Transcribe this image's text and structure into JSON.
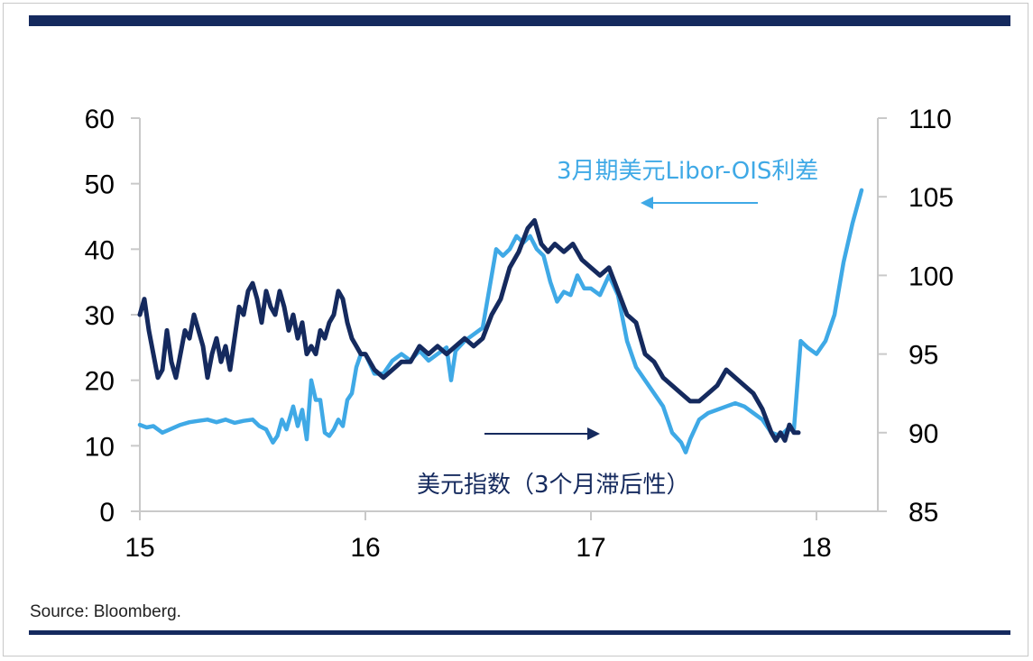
{
  "chart_data": {
    "type": "line",
    "x_ticks": [
      "15",
      "16",
      "17",
      "18"
    ],
    "y_left": {
      "ticks": [
        "60",
        "50",
        "40",
        "30",
        "20",
        "10",
        "0"
      ],
      "range": [
        0,
        60
      ]
    },
    "y_right": {
      "ticks": [
        "110",
        "105",
        "100",
        "95",
        "90",
        "85"
      ],
      "range": [
        85,
        110
      ]
    },
    "x_range": [
      2015.0,
      2018.3
    ],
    "series": [
      {
        "name": "3月期美元Libor-OIS利差",
        "axis": "left",
        "color": "#3fa9e6",
        "points": [
          [
            2015.0,
            13.2
          ],
          [
            2015.03,
            12.8
          ],
          [
            2015.06,
            13.0
          ],
          [
            2015.1,
            12.0
          ],
          [
            2015.14,
            12.6
          ],
          [
            2015.18,
            13.2
          ],
          [
            2015.22,
            13.6
          ],
          [
            2015.26,
            13.8
          ],
          [
            2015.3,
            14.0
          ],
          [
            2015.34,
            13.6
          ],
          [
            2015.38,
            14.0
          ],
          [
            2015.42,
            13.5
          ],
          [
            2015.46,
            13.8
          ],
          [
            2015.5,
            14.0
          ],
          [
            2015.53,
            13.0
          ],
          [
            2015.56,
            12.5
          ],
          [
            2015.59,
            10.5
          ],
          [
            2015.61,
            11.5
          ],
          [
            2015.63,
            14.0
          ],
          [
            2015.65,
            12.5
          ],
          [
            2015.68,
            16.0
          ],
          [
            2015.7,
            13.0
          ],
          [
            2015.72,
            15.5
          ],
          [
            2015.74,
            11.0
          ],
          [
            2015.76,
            20.0
          ],
          [
            2015.78,
            17.0
          ],
          [
            2015.8,
            17.0
          ],
          [
            2015.82,
            12.0
          ],
          [
            2015.84,
            11.5
          ],
          [
            2015.86,
            12.5
          ],
          [
            2015.88,
            14.0
          ],
          [
            2015.9,
            13.0
          ],
          [
            2015.92,
            17.0
          ],
          [
            2015.94,
            18.0
          ],
          [
            2015.96,
            22.0
          ],
          [
            2015.98,
            24.0
          ],
          [
            2016.0,
            24.0
          ],
          [
            2016.04,
            21.0
          ],
          [
            2016.08,
            21.0
          ],
          [
            2016.12,
            23.0
          ],
          [
            2016.16,
            24.0
          ],
          [
            2016.2,
            23.0
          ],
          [
            2016.24,
            24.5
          ],
          [
            2016.28,
            23.0
          ],
          [
            2016.32,
            24.0
          ],
          [
            2016.36,
            25.0
          ],
          [
            2016.38,
            20.0
          ],
          [
            2016.4,
            24.5
          ],
          [
            2016.44,
            26.0
          ],
          [
            2016.48,
            27.0
          ],
          [
            2016.52,
            28.0
          ],
          [
            2016.55,
            34.0
          ],
          [
            2016.58,
            40.0
          ],
          [
            2016.61,
            39.0
          ],
          [
            2016.64,
            40.0
          ],
          [
            2016.67,
            42.0
          ],
          [
            2016.7,
            41.0
          ],
          [
            2016.73,
            42.0
          ],
          [
            2016.76,
            40.0
          ],
          [
            2016.79,
            39.0
          ],
          [
            2016.82,
            35.0
          ],
          [
            2016.85,
            32.0
          ],
          [
            2016.88,
            33.5
          ],
          [
            2016.91,
            33.0
          ],
          [
            2016.94,
            36.0
          ],
          [
            2016.97,
            34.0
          ],
          [
            2017.0,
            34.0
          ],
          [
            2017.04,
            33.0
          ],
          [
            2017.08,
            36.0
          ],
          [
            2017.12,
            33.0
          ],
          [
            2017.16,
            26.0
          ],
          [
            2017.2,
            22.0
          ],
          [
            2017.24,
            20.0
          ],
          [
            2017.28,
            18.0
          ],
          [
            2017.32,
            16.0
          ],
          [
            2017.36,
            12.0
          ],
          [
            2017.4,
            10.5
          ],
          [
            2017.42,
            9.0
          ],
          [
            2017.44,
            11.0
          ],
          [
            2017.48,
            14.0
          ],
          [
            2017.52,
            15.0
          ],
          [
            2017.56,
            15.5
          ],
          [
            2017.6,
            16.0
          ],
          [
            2017.64,
            16.5
          ],
          [
            2017.68,
            16.0
          ],
          [
            2017.72,
            15.0
          ],
          [
            2017.76,
            14.0
          ],
          [
            2017.8,
            12.0
          ],
          [
            2017.84,
            11.5
          ],
          [
            2017.87,
            12.5
          ],
          [
            2017.9,
            12.5
          ],
          [
            2017.93,
            26.0
          ],
          [
            2017.96,
            25.0
          ],
          [
            2018.0,
            24.0
          ],
          [
            2018.04,
            26.0
          ],
          [
            2018.08,
            30.0
          ],
          [
            2018.12,
            38.0
          ],
          [
            2018.16,
            44.0
          ],
          [
            2018.2,
            49.0
          ]
        ]
      },
      {
        "name": "美元指数（3个月滞后性）",
        "axis": "right",
        "color": "#152a5e",
        "points": [
          [
            2015.0,
            97.5
          ],
          [
            2015.02,
            98.5
          ],
          [
            2015.04,
            96.5
          ],
          [
            2015.06,
            95.0
          ],
          [
            2015.08,
            93.5
          ],
          [
            2015.1,
            94.0
          ],
          [
            2015.12,
            96.5
          ],
          [
            2015.14,
            94.5
          ],
          [
            2015.16,
            93.5
          ],
          [
            2015.18,
            95.0
          ],
          [
            2015.2,
            96.5
          ],
          [
            2015.22,
            96.0
          ],
          [
            2015.24,
            97.5
          ],
          [
            2015.26,
            96.5
          ],
          [
            2015.28,
            95.5
          ],
          [
            2015.3,
            93.5
          ],
          [
            2015.32,
            95.0
          ],
          [
            2015.34,
            96.0
          ],
          [
            2015.36,
            94.5
          ],
          [
            2015.38,
            95.5
          ],
          [
            2015.4,
            94.0
          ],
          [
            2015.42,
            96.0
          ],
          [
            2015.44,
            98.0
          ],
          [
            2015.46,
            97.5
          ],
          [
            2015.48,
            99.0
          ],
          [
            2015.5,
            99.5
          ],
          [
            2015.52,
            98.5
          ],
          [
            2015.54,
            97.0
          ],
          [
            2015.56,
            99.0
          ],
          [
            2015.58,
            98.0
          ],
          [
            2015.6,
            97.5
          ],
          [
            2015.62,
            99.0
          ],
          [
            2015.64,
            98.0
          ],
          [
            2015.66,
            96.5
          ],
          [
            2015.68,
            97.5
          ],
          [
            2015.7,
            96.0
          ],
          [
            2015.72,
            97.0
          ],
          [
            2015.74,
            95.0
          ],
          [
            2015.76,
            95.5
          ],
          [
            2015.78,
            95.0
          ],
          [
            2015.8,
            96.5
          ],
          [
            2015.82,
            96.0
          ],
          [
            2015.84,
            97.0
          ],
          [
            2015.86,
            97.5
          ],
          [
            2015.88,
            99.0
          ],
          [
            2015.9,
            98.5
          ],
          [
            2015.92,
            97.0
          ],
          [
            2015.94,
            96.0
          ],
          [
            2015.96,
            95.5
          ],
          [
            2015.98,
            95.0
          ],
          [
            2016.0,
            95.0
          ],
          [
            2016.04,
            94.0
          ],
          [
            2016.08,
            93.5
          ],
          [
            2016.12,
            94.0
          ],
          [
            2016.16,
            94.5
          ],
          [
            2016.2,
            94.5
          ],
          [
            2016.24,
            95.5
          ],
          [
            2016.28,
            95.0
          ],
          [
            2016.32,
            95.5
          ],
          [
            2016.36,
            95.0
          ],
          [
            2016.4,
            95.5
          ],
          [
            2016.44,
            96.0
          ],
          [
            2016.48,
            95.5
          ],
          [
            2016.52,
            96.0
          ],
          [
            2016.56,
            97.5
          ],
          [
            2016.6,
            98.5
          ],
          [
            2016.64,
            100.5
          ],
          [
            2016.68,
            101.5
          ],
          [
            2016.72,
            103.0
          ],
          [
            2016.75,
            103.5
          ],
          [
            2016.78,
            102.0
          ],
          [
            2016.81,
            101.5
          ],
          [
            2016.84,
            102.0
          ],
          [
            2016.88,
            101.5
          ],
          [
            2016.92,
            102.0
          ],
          [
            2016.96,
            101.0
          ],
          [
            2017.0,
            100.5
          ],
          [
            2017.04,
            100.0
          ],
          [
            2017.08,
            100.5
          ],
          [
            2017.12,
            99.0
          ],
          [
            2017.16,
            97.5
          ],
          [
            2017.2,
            97.0
          ],
          [
            2017.24,
            95.0
          ],
          [
            2017.28,
            94.5
          ],
          [
            2017.32,
            93.5
          ],
          [
            2017.36,
            93.0
          ],
          [
            2017.4,
            92.5
          ],
          [
            2017.44,
            92.0
          ],
          [
            2017.48,
            92.0
          ],
          [
            2017.52,
            92.5
          ],
          [
            2017.56,
            93.0
          ],
          [
            2017.6,
            94.0
          ],
          [
            2017.64,
            93.5
          ],
          [
            2017.68,
            93.0
          ],
          [
            2017.72,
            92.5
          ],
          [
            2017.76,
            91.5
          ],
          [
            2017.8,
            90.0
          ],
          [
            2017.82,
            89.5
          ],
          [
            2017.84,
            90.0
          ],
          [
            2017.86,
            89.5
          ],
          [
            2017.88,
            90.5
          ],
          [
            2017.9,
            90.0
          ],
          [
            2017.92,
            90.0
          ]
        ]
      }
    ],
    "annotations": [
      {
        "text": "3月期美元Libor-OIS利差",
        "color": "#3fa9e6",
        "arrow": "left"
      },
      {
        "text": "美元指数（3个月滞后性）",
        "color": "#152a5e",
        "arrow": "right"
      }
    ],
    "source": "Source: Bloomberg.",
    "colors": {
      "header_bar": "#152a5e",
      "axis": "#c9c9c9"
    }
  }
}
